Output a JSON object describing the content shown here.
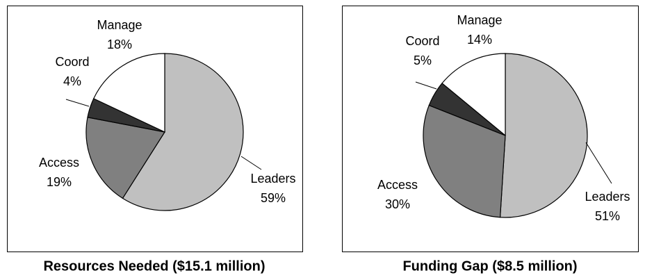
{
  "chart_data": [
    {
      "type": "pie",
      "title": "Resources Needed ($15.1 million)",
      "categories": [
        "Leaders",
        "Access",
        "Coord",
        "Manage"
      ],
      "values": [
        59,
        19,
        4,
        18
      ],
      "value_labels": [
        "59%",
        "19%",
        "4%",
        "18%"
      ],
      "colors": [
        "#c0c0c0",
        "#808080",
        "#333333",
        "#ffffff"
      ]
    },
    {
      "type": "pie",
      "title": "Funding Gap ($8.5 million)",
      "categories": [
        "Leaders",
        "Access",
        "Coord",
        "Manage"
      ],
      "values": [
        51,
        30,
        5,
        14
      ],
      "value_labels": [
        "51%",
        "30%",
        "5%",
        "14%"
      ],
      "colors": [
        "#c0c0c0",
        "#808080",
        "#333333",
        "#ffffff"
      ]
    }
  ]
}
